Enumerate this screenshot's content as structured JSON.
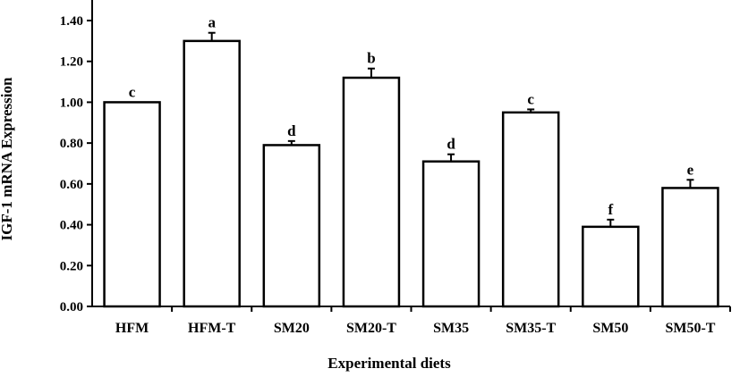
{
  "chart_data": {
    "type": "bar",
    "title": "",
    "xlabel": "Experimental diets",
    "ylabel": "IGF-1 mRNA Expression",
    "categories": [
      "HFM",
      "HFM-T",
      "SM20",
      "SM20-T",
      "SM35",
      "SM35-T",
      "SM50",
      "SM50-T"
    ],
    "values": [
      1.0,
      1.3,
      0.79,
      1.12,
      0.71,
      0.95,
      0.39,
      0.58
    ],
    "errors": [
      0.0,
      0.04,
      0.02,
      0.045,
      0.035,
      0.015,
      0.035,
      0.04
    ],
    "significance_letters": [
      "c",
      "a",
      "d",
      "b",
      "d",
      "c",
      "f",
      "e"
    ],
    "yticks": [
      "0.00",
      "0.20",
      "0.40",
      "0.60",
      "0.80",
      "1.00",
      "1.20",
      "1.40"
    ],
    "ylim": [
      0,
      1.4
    ],
    "grid": false,
    "legend": "none",
    "bar_fill": "#ffffff",
    "bar_stroke": "#000000"
  }
}
